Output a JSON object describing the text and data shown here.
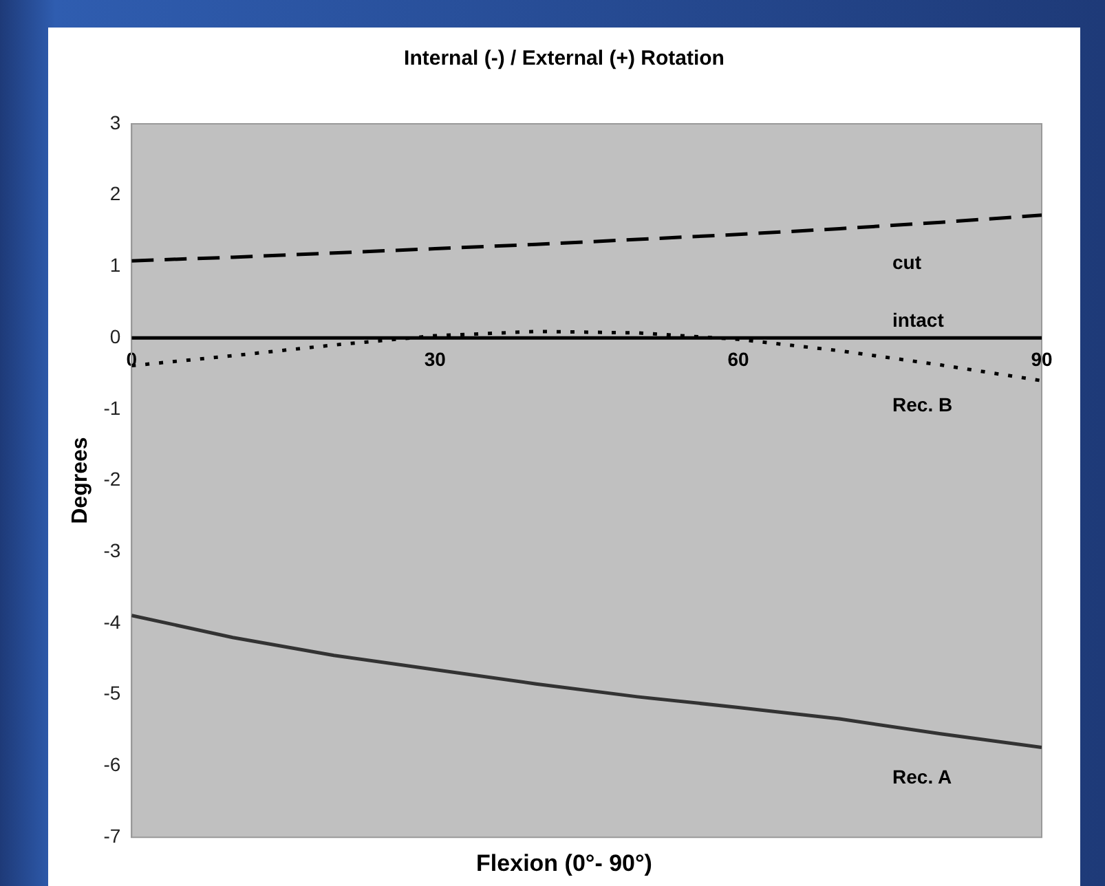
{
  "chart_data": {
    "type": "line",
    "title": "Internal (-) / External (+) Rotation",
    "xlabel": "Flexion (0°- 90°)",
    "ylabel": "Degrees",
    "x": [
      0,
      10,
      20,
      30,
      40,
      50,
      60,
      70,
      80,
      90
    ],
    "xlim": [
      0,
      90
    ],
    "xticks": [
      0,
      30,
      60,
      90
    ],
    "ylim": [
      -7,
      3
    ],
    "yticks": [
      -7,
      -6,
      -5,
      -4,
      -3,
      -2,
      -1,
      0,
      1,
      2,
      3
    ],
    "grid": false,
    "legend": false,
    "marker": "none",
    "series": [
      {
        "name": "cut",
        "color": "#000000",
        "line_style": "dashed",
        "values": [
          1.08,
          1.13,
          1.19,
          1.25,
          1.31,
          1.38,
          1.45,
          1.53,
          1.62,
          1.72
        ]
      },
      {
        "name": "intact",
        "color": "#000000",
        "line_style": "solid",
        "values": [
          0,
          0,
          0,
          0,
          0,
          0,
          0,
          0,
          0,
          0
        ]
      },
      {
        "name": "Rec. B",
        "color": "#000000",
        "line_style": "dotted",
        "values": [
          -0.39,
          -0.25,
          -0.1,
          0.03,
          0.09,
          0.07,
          -0.02,
          -0.18,
          -0.38,
          -0.6
        ]
      },
      {
        "name": "Rec. A",
        "color": "#333333",
        "line_style": "solid",
        "values": [
          -3.89,
          -4.2,
          -4.45,
          -4.65,
          -4.85,
          -5.03,
          -5.18,
          -5.34,
          -5.55,
          -5.74
        ]
      }
    ]
  }
}
